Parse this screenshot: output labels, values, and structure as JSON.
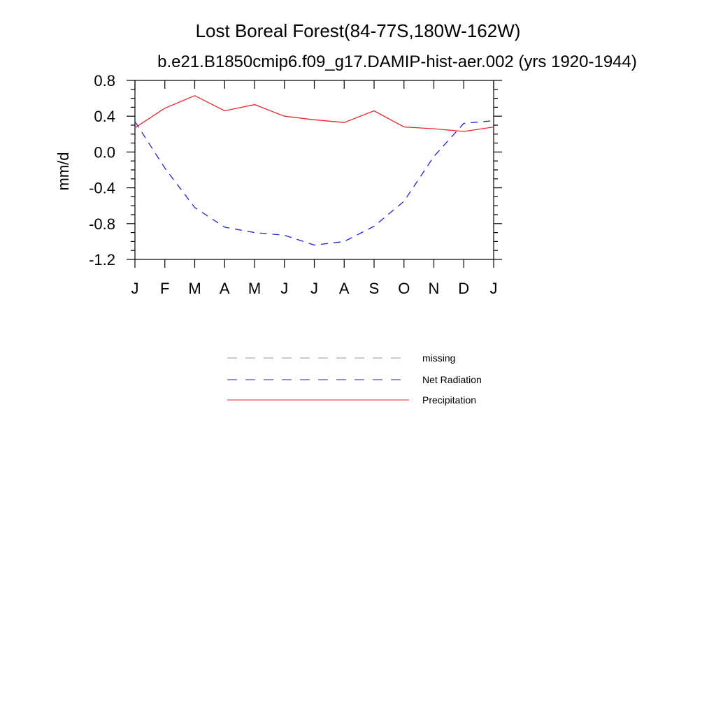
{
  "chart_data": {
    "type": "line",
    "title": "Lost Boreal Forest(84-77S,180W-162W)",
    "subtitle": "b.e21.B1850cmip6.f09_g17.DAMIP-hist-aer.002 (yrs 1920-1944)",
    "xlabel": "",
    "ylabel": "mm/d",
    "categories": [
      "J",
      "F",
      "M",
      "A",
      "M",
      "J",
      "J",
      "A",
      "S",
      "O",
      "N",
      "D",
      "J"
    ],
    "ylim": [
      -1.2,
      0.8
    ],
    "yticks": [
      "0.8",
      "0.4",
      "0.0",
      "-0.4",
      "-0.8",
      "-1.2"
    ],
    "ytick_values": [
      0.8,
      0.4,
      0.0,
      -0.4,
      -0.8,
      -1.2
    ],
    "grid": false,
    "legend_placement": "below",
    "legend": [
      {
        "name": "missing",
        "color": "#999999",
        "dash": "dashed"
      },
      {
        "name": "Net Radiation",
        "color": "#1f1fdc",
        "dash": "dashed"
      },
      {
        "name": "Precipitation",
        "color": "#e8262a",
        "dash": "solid"
      }
    ],
    "series": [
      {
        "name": "Net Radiation",
        "color": "#1f1fdc",
        "dash": "dashed",
        "values": [
          0.34,
          -0.18,
          -0.62,
          -0.84,
          -0.9,
          -0.93,
          -1.04,
          -1.0,
          -0.83,
          -0.55,
          -0.05,
          0.32,
          0.35
        ]
      },
      {
        "name": "Precipitation",
        "color": "#e8262a",
        "dash": "solid",
        "values": [
          0.27,
          0.49,
          0.63,
          0.46,
          0.53,
          0.4,
          0.36,
          0.33,
          0.46,
          0.28,
          0.26,
          0.23,
          0.28
        ]
      }
    ]
  }
}
